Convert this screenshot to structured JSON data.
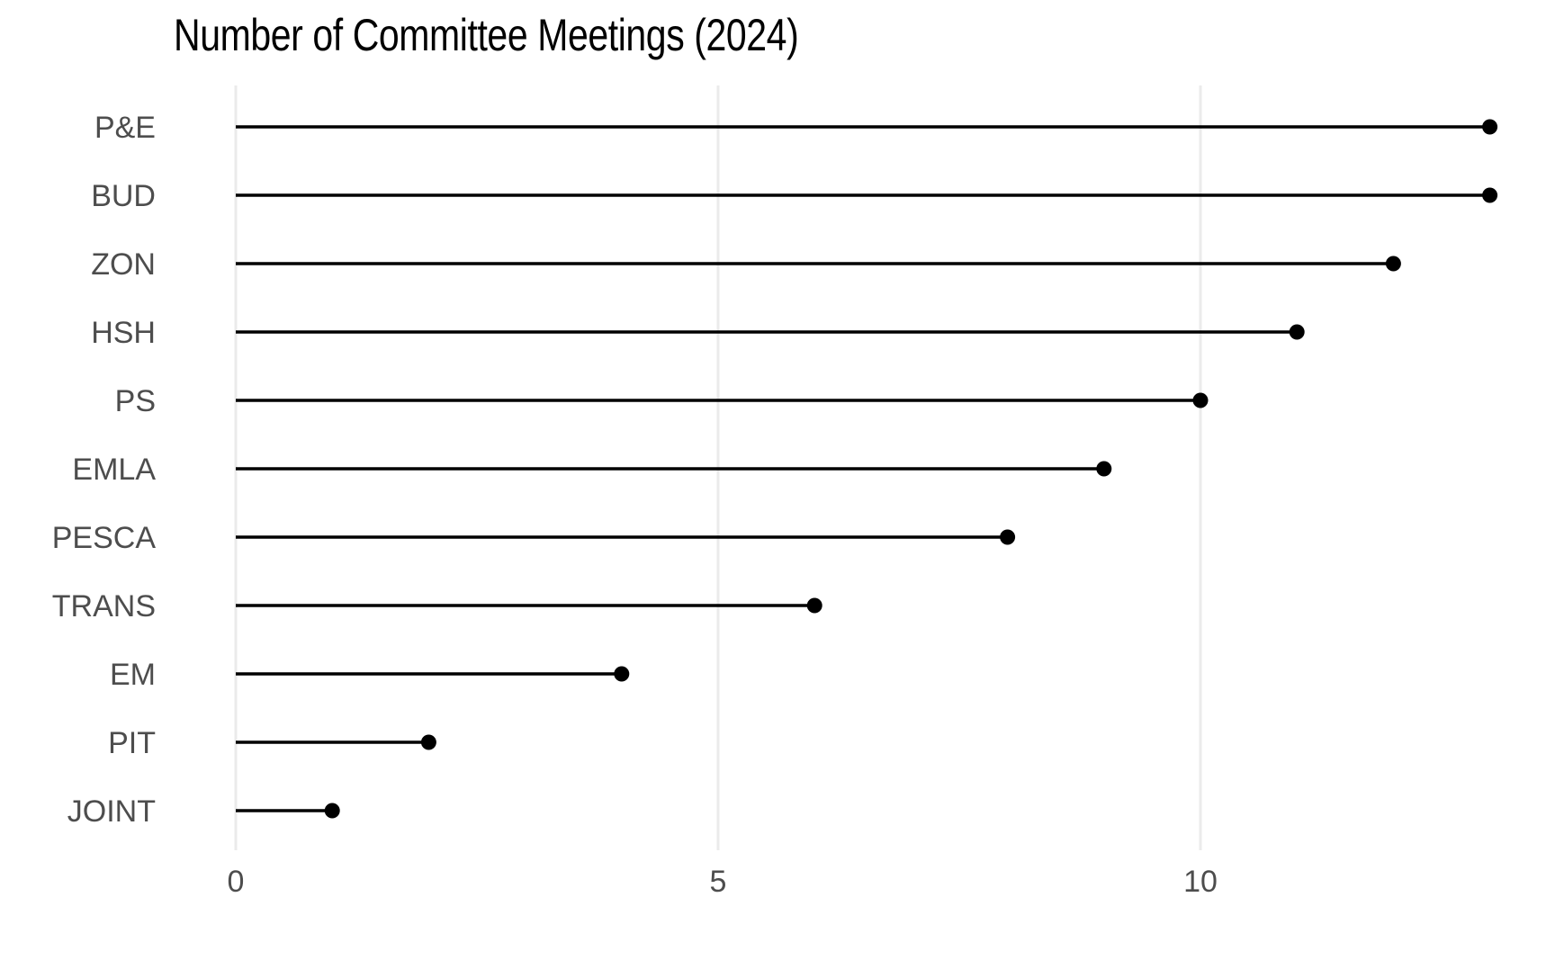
{
  "chart_data": {
    "type": "lollipop",
    "title": "Number of Committee Meetings (2024)",
    "xlabel": "",
    "ylabel": "",
    "xlim": [
      0,
      13
    ],
    "x_ticks": [
      0,
      5,
      10
    ],
    "x_tick_labels": [
      "0",
      "5",
      "10"
    ],
    "grid": "vertical major gridlines",
    "legend": "none",
    "categories": [
      "P&E",
      "BUD",
      "ZON",
      "HSH",
      "PS",
      "EMLA",
      "PESCA",
      "TRANS",
      "EM",
      "PIT",
      "JOINT"
    ],
    "values": [
      13,
      13,
      12,
      11,
      10,
      9,
      8,
      6,
      4,
      2,
      1
    ],
    "colors": {
      "mark": "#000000",
      "grid": "#ebebeb",
      "label": "#4d4d4d"
    }
  }
}
